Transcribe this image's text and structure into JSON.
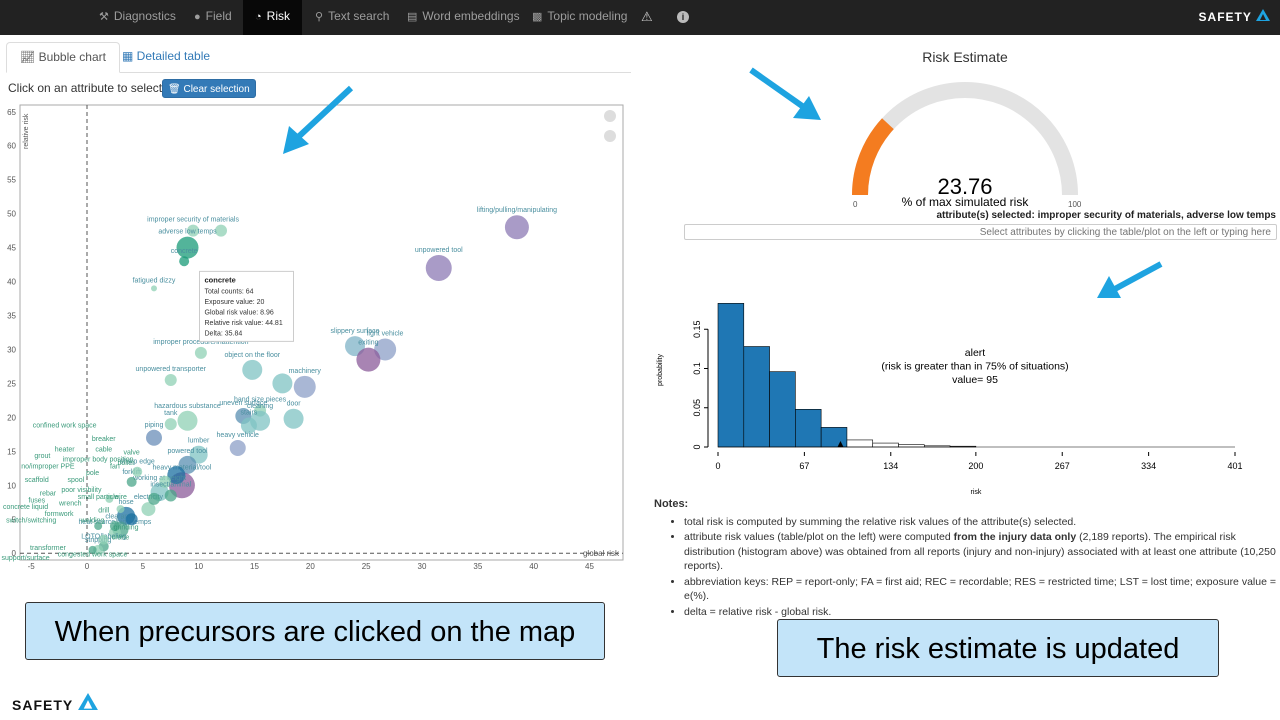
{
  "nav": {
    "items": [
      {
        "label": "Diagnostics",
        "icon": "wrench-icon"
      },
      {
        "label": "Field",
        "icon": "user-icon"
      },
      {
        "label": "Risk",
        "icon": "dashboard-icon",
        "active": true
      },
      {
        "label": "Text search",
        "icon": "search-icon"
      },
      {
        "label": "Word embeddings",
        "icon": "chart-icon"
      },
      {
        "label": "Topic modeling",
        "icon": "bar-chart-icon"
      }
    ],
    "brand": "SAFETY"
  },
  "tabs": [
    {
      "label": "Bubble chart",
      "active": true
    },
    {
      "label": "Detailed table",
      "active": false
    }
  ],
  "hint": "Click on an attribute to select it.",
  "clear_button": "Clear selection",
  "tooltip": {
    "title": "concrete",
    "lines": [
      "Total counts: 64",
      "Exposure value: 20",
      "Global risk value: 8.96",
      "Relative risk value: 44.81",
      "Delta: 35.84"
    ]
  },
  "gauge": {
    "title": "Risk Estimate",
    "value": "23.76",
    "value_num": 23.76,
    "unit": "% of max simulated risk",
    "min": "0",
    "max": "100",
    "fill_color": "#f47c20",
    "track_color": "#e3e3e3"
  },
  "selected_attributes": "attribute(s) selected: improper security of materials, adverse low temps",
  "select_placeholder": "Select attributes by clicking the table/plot on the left or typing here",
  "chart_data": [
    {
      "type": "scatter",
      "title": "",
      "xlabel": "global risk",
      "ylabel": "relative risk",
      "xlim": [
        -6,
        48
      ],
      "ylim": [
        -1,
        66
      ],
      "xticks": [
        -5,
        0,
        5,
        10,
        15,
        20,
        25,
        30,
        35,
        40,
        45
      ],
      "yticks": [
        0,
        5,
        10,
        15,
        20,
        25,
        30,
        35,
        40,
        45,
        50,
        55,
        60,
        65
      ],
      "points": [
        {
          "label": "lifting/pulling/manipulating",
          "x": 38.5,
          "y": 48,
          "r": 12,
          "c": "#8c7ab4"
        },
        {
          "label": "unpowered tool",
          "x": 31.5,
          "y": 42,
          "r": 13,
          "c": "#8c7ab4"
        },
        {
          "label": "improper security of materials",
          "x": 9.5,
          "y": 47.5,
          "r": 6,
          "c": "#8fd0b4"
        },
        {
          "label": "",
          "x": 12,
          "y": 47.5,
          "r": 6,
          "c": "#8fd0b4"
        },
        {
          "label": "adverse low temps",
          "x": 9,
          "y": 45,
          "r": 11,
          "c": "#1a9b78"
        },
        {
          "label": "concrete",
          "x": 8.7,
          "y": 43,
          "r": 5,
          "c": "#1a9b78"
        },
        {
          "label": "fatigued dizzy",
          "x": 6,
          "y": 39,
          "r": 3,
          "c": "#8fd0b4"
        },
        {
          "label": "slippery surface",
          "x": 24,
          "y": 30.5,
          "r": 10,
          "c": "#7fb3c7"
        },
        {
          "label": "light vehicle",
          "x": 26.7,
          "y": 30,
          "r": 11,
          "c": "#8c9fc7"
        },
        {
          "label": "exiting",
          "x": 25.2,
          "y": 28.5,
          "r": 12,
          "c": "#8b5b9a"
        },
        {
          "label": "improper procedure/inattention",
          "x": 10.2,
          "y": 29.5,
          "r": 6,
          "c": "#8fd0b4"
        },
        {
          "label": "object on the floor",
          "x": 14.8,
          "y": 27,
          "r": 10,
          "c": "#7fc3c3"
        },
        {
          "label": "machinery",
          "x": 19.5,
          "y": 24.5,
          "r": 11,
          "c": "#8c9fc7"
        },
        {
          "label": "",
          "x": 17.5,
          "y": 25,
          "r": 10,
          "c": "#7fc3c3"
        },
        {
          "label": "unpowered transporter",
          "x": 7.5,
          "y": 25.5,
          "r": 6,
          "c": "#8fd0b4"
        },
        {
          "label": "hand size pieces",
          "x": 15.5,
          "y": 21,
          "r": 6,
          "c": "#8fd0b4"
        },
        {
          "label": "uneven surface",
          "x": 14,
          "y": 20.2,
          "r": 8,
          "c": "#5a8fb2"
        },
        {
          "label": "cleaning",
          "x": 15.5,
          "y": 19.5,
          "r": 10,
          "c": "#7fc3c3"
        },
        {
          "label": "stairs",
          "x": 14.5,
          "y": 18.8,
          "r": 8,
          "c": "#7fc3c3"
        },
        {
          "label": "door",
          "x": 18.5,
          "y": 19.8,
          "r": 10,
          "c": "#7fc3c3"
        },
        {
          "label": "hazardous substance",
          "x": 9,
          "y": 19.5,
          "r": 10,
          "c": "#8fd0b4"
        },
        {
          "label": "tank",
          "x": 7.5,
          "y": 19,
          "r": 6,
          "c": "#8fd0b4"
        },
        {
          "label": "piping",
          "x": 6,
          "y": 17,
          "r": 8,
          "c": "#6a8db8"
        },
        {
          "label": "heavy vehicle",
          "x": 13.5,
          "y": 15.5,
          "r": 8,
          "c": "#8c9fc7"
        },
        {
          "label": "lumber",
          "x": 10,
          "y": 14.5,
          "r": 9,
          "c": "#7fc3c3"
        },
        {
          "label": "powered tool",
          "x": 9,
          "y": 13,
          "r": 9,
          "c": "#5a8fb2"
        },
        {
          "label": "heavy material/tool",
          "x": 8.5,
          "y": 10,
          "r": 13,
          "c": "#8b5b9a"
        },
        {
          "label": "",
          "x": 8,
          "y": 11.5,
          "r": 9,
          "c": "#1a6fa0"
        },
        {
          "label": "working at height",
          "x": 6.5,
          "y": 9,
          "r": 9,
          "c": "#7fc3c3"
        },
        {
          "label": "",
          "x": 7,
          "y": 10.5,
          "r": 6,
          "c": "#8fd0b4"
        },
        {
          "label": "insect/animal",
          "x": 7.5,
          "y": 8.5,
          "r": 6,
          "c": "#4ba58a"
        },
        {
          "label": "electricity",
          "x": 5.5,
          "y": 6.5,
          "r": 7,
          "c": "#8fd0b4"
        },
        {
          "label": "hose",
          "x": 3.5,
          "y": 5.5,
          "r": 9,
          "c": "#1a6fa0"
        },
        {
          "label": "clearance",
          "x": 3,
          "y": 3.5,
          "r": 8,
          "c": "#4ba58a"
        },
        {
          "label": "heat source/high temps",
          "x": 2.5,
          "y": 3,
          "r": 6,
          "c": "#8fd0b4"
        },
        {
          "label": "LOTO/labeling",
          "x": 1.5,
          "y": 1,
          "r": 5,
          "c": "#4ba58a"
        },
        {
          "label": "stripping",
          "x": 1,
          "y": 0.5,
          "r": 5,
          "c": "#8fd0b4"
        },
        {
          "label": "forklift",
          "x": 4,
          "y": 10.5,
          "r": 5,
          "c": "#4ba58a"
        },
        {
          "label": "sharp edge",
          "x": 4.5,
          "y": 12,
          "r": 5,
          "c": "#8fd0b4"
        },
        {
          "label": "",
          "x": 6,
          "y": 8,
          "r": 6,
          "c": "#4ba58a"
        },
        {
          "label": "",
          "x": 4,
          "y": 5,
          "r": 6,
          "c": "#1a6fa0"
        },
        {
          "label": "",
          "x": 2.5,
          "y": 4,
          "r": 5,
          "c": "#4ba58a"
        },
        {
          "label": "",
          "x": 1.5,
          "y": 2,
          "r": 5,
          "c": "#8fd0b4"
        },
        {
          "label": "",
          "x": 0.5,
          "y": 0.5,
          "r": 4,
          "c": "#4ba58a"
        },
        {
          "label": "",
          "x": 3,
          "y": 6.5,
          "r": 4,
          "c": "#8fd0b4"
        },
        {
          "label": "",
          "x": 2,
          "y": 8,
          "r": 4,
          "c": "#8fd0b4"
        },
        {
          "label": "",
          "x": 1,
          "y": 4,
          "r": 4,
          "c": "#4ba58a"
        }
      ],
      "extra_labels": [
        {
          "label": "confined work space",
          "x": -2,
          "y": 18.5
        },
        {
          "label": "breaker",
          "x": 1.5,
          "y": 16.5
        },
        {
          "label": "heater",
          "x": -2,
          "y": 15
        },
        {
          "label": "cable",
          "x": 1.5,
          "y": 15
        },
        {
          "label": "valve",
          "x": 4,
          "y": 14.5
        },
        {
          "label": "grout",
          "x": -4,
          "y": 14
        },
        {
          "label": "improper body position",
          "x": 1,
          "y": 13.5
        },
        {
          "label": "fan",
          "x": 2.5,
          "y": 12.5
        },
        {
          "label": "boiler",
          "x": 3.5,
          "y": 13
        },
        {
          "label": "no/improper PPE",
          "x": -3.5,
          "y": 12.5
        },
        {
          "label": "pole",
          "x": 0.5,
          "y": 11.5
        },
        {
          "label": "scaffold",
          "x": -4.5,
          "y": 10.5
        },
        {
          "label": "spool",
          "x": -1,
          "y": 10.5
        },
        {
          "label": "poor visibility",
          "x": -0.5,
          "y": 9
        },
        {
          "label": "rebar",
          "x": -3.5,
          "y": 8.5
        },
        {
          "label": "small particle",
          "x": 1,
          "y": 8
        },
        {
          "label": "wire",
          "x": 3,
          "y": 8
        },
        {
          "label": "fuses",
          "x": -4.5,
          "y": 7.5
        },
        {
          "label": "wrench",
          "x": -1.5,
          "y": 7
        },
        {
          "label": "concrete liquid",
          "x": -5.5,
          "y": 6.5
        },
        {
          "label": "drill",
          "x": 1.5,
          "y": 6
        },
        {
          "label": "formwork",
          "x": -2.5,
          "y": 5.5
        },
        {
          "label": "switch/switching",
          "x": -5,
          "y": 4.5
        },
        {
          "label": "welding",
          "x": 0.5,
          "y": 4.5
        },
        {
          "label": "grinding",
          "x": 3.5,
          "y": 3.5
        },
        {
          "label": "crane",
          "x": 3,
          "y": 2
        },
        {
          "label": "transformer",
          "x": -3.5,
          "y": 0.5
        },
        {
          "label": "congested work space",
          "x": 0.5,
          "y": -0.5
        },
        {
          "label": "support/surface",
          "x": -5.5,
          "y": -1
        }
      ]
    },
    {
      "type": "bar",
      "title": "",
      "xlabel": "risk",
      "ylabel": "probability",
      "xticks": [
        "0",
        "67",
        "134",
        "200",
        "267",
        "334",
        "401"
      ],
      "yticks": [
        "0",
        "0.05",
        "0.1",
        "0.15"
      ],
      "xlim": [
        0,
        401
      ],
      "ylim": [
        0,
        0.2
      ],
      "bins": [
        {
          "x0": 0,
          "x1": 20,
          "v": 0.183,
          "fill": "#1f77b4"
        },
        {
          "x0": 20,
          "x1": 40,
          "v": 0.128,
          "fill": "#1f77b4"
        },
        {
          "x0": 40,
          "x1": 60,
          "v": 0.096,
          "fill": "#1f77b4"
        },
        {
          "x0": 60,
          "x1": 80,
          "v": 0.048,
          "fill": "#1f77b4"
        },
        {
          "x0": 80,
          "x1": 100,
          "v": 0.025,
          "fill": "#1f77b4"
        },
        {
          "x0": 100,
          "x1": 120,
          "v": 0.009,
          "fill": "#ffffff"
        },
        {
          "x0": 120,
          "x1": 140,
          "v": 0.005,
          "fill": "#ffffff"
        },
        {
          "x0": 140,
          "x1": 160,
          "v": 0.003,
          "fill": "#ffffff"
        },
        {
          "x0": 160,
          "x1": 180,
          "v": 0.0015,
          "fill": "#ffffff"
        },
        {
          "x0": 180,
          "x1": 200,
          "v": 0.001,
          "fill": "#ffffff"
        }
      ],
      "marker_x": 95,
      "annotation": [
        "alert",
        "(risk is greater than in 75% of situations)",
        "value= 95"
      ]
    }
  ],
  "notes": {
    "title": "Notes:",
    "items": [
      "total risk is computed by summing the relative risk values of the attribute(s) selected.",
      "attribute risk values (table/plot on the left) were computed ",
      "abbreviation keys: REP = report-only; FA = first aid; REC = recordable; RES = restricted time; LST = lost time; exposure value = e(%).",
      "delta = relative risk - global risk."
    ],
    "item2_bold": "from the injury data only",
    "item2_rest": " (2,189 reports). The empirical risk distribution (histogram above) was obtained from all reports (injury and non-injury) associated with at least one attribute (10,250 reports)."
  },
  "callouts": {
    "left": "When precursors are clicked on the map",
    "right": "The risk estimate is updated"
  },
  "footer_brand": "SAFETY",
  "arrow_color": "#1ea3e0"
}
